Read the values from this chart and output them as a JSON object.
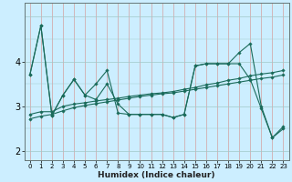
{
  "xlabel": "Humidex (Indice chaleur)",
  "bg_color": "#cceeff",
  "line_color": "#1a6b5a",
  "grid_color_v": "#e8b0b0",
  "grid_color_h": "#c0d8d8",
  "xlim": [
    -0.5,
    23.5
  ],
  "ylim": [
    1.8,
    5.3
  ],
  "yticks": [
    2,
    3,
    4
  ],
  "xticks": [
    0,
    1,
    2,
    3,
    4,
    5,
    6,
    7,
    8,
    9,
    10,
    11,
    12,
    13,
    14,
    15,
    16,
    17,
    18,
    19,
    20,
    21,
    22,
    23
  ],
  "series": {
    "s1": [
      3.7,
      4.8,
      2.8,
      3.25,
      3.6,
      3.25,
      3.5,
      3.8,
      2.85,
      2.82,
      2.82,
      2.82,
      2.82,
      2.75,
      2.82,
      3.9,
      3.95,
      3.95,
      3.95,
      4.2,
      4.4,
      3.0,
      2.3,
      2.5
    ],
    "s2": [
      3.7,
      4.8,
      2.8,
      3.25,
      3.6,
      3.25,
      3.15,
      3.5,
      3.05,
      2.82,
      2.82,
      2.82,
      2.82,
      2.75,
      2.82,
      3.9,
      3.95,
      3.95,
      3.95,
      3.95,
      3.6,
      2.95,
      2.3,
      2.55
    ],
    "s3": [
      2.82,
      2.88,
      2.88,
      3.0,
      3.05,
      3.08,
      3.12,
      3.15,
      3.18,
      3.22,
      3.25,
      3.28,
      3.3,
      3.33,
      3.38,
      3.42,
      3.48,
      3.52,
      3.58,
      3.62,
      3.68,
      3.72,
      3.75,
      3.8
    ],
    "s4": [
      2.72,
      2.78,
      2.82,
      2.9,
      2.97,
      3.02,
      3.06,
      3.1,
      3.14,
      3.18,
      3.22,
      3.25,
      3.28,
      3.3,
      3.34,
      3.38,
      3.42,
      3.46,
      3.5,
      3.54,
      3.58,
      3.62,
      3.65,
      3.7
    ]
  }
}
